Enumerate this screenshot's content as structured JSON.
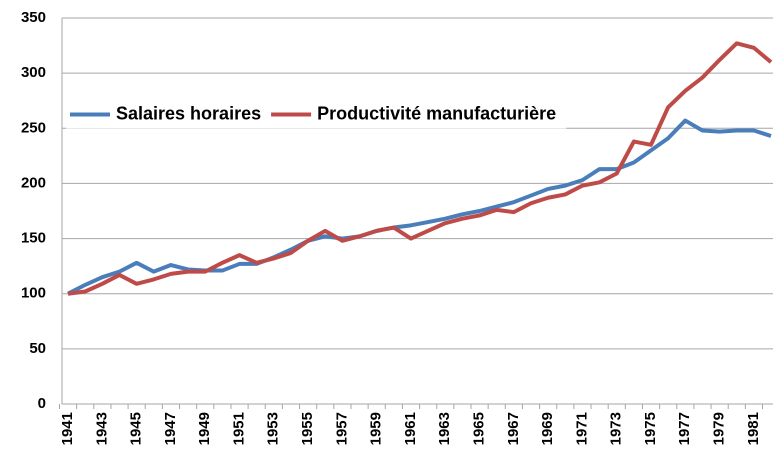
{
  "chart_data": {
    "type": "line",
    "categories": [
      "1941",
      null,
      "1943",
      null,
      "1945",
      null,
      "1947",
      null,
      "1949",
      null,
      "1951",
      null,
      "1953",
      null,
      "1955",
      null,
      "1957",
      null,
      "1959",
      null,
      "1961",
      null,
      "1963",
      null,
      "1965",
      null,
      "1967",
      null,
      "1969",
      null,
      "1971",
      null,
      "1973",
      null,
      "1975",
      null,
      "1977",
      null,
      "1979",
      null,
      "1981",
      null
    ],
    "series": [
      {
        "name": "Salaires horaires",
        "color": "#4a7ebb",
        "values": [
          100,
          108,
          115,
          120,
          128,
          120,
          126,
          122,
          121,
          121,
          127,
          127,
          133,
          140,
          148,
          152,
          150,
          152,
          157,
          160,
          162,
          165,
          168,
          172,
          175,
          179,
          183,
          189,
          195,
          198,
          203,
          213,
          213,
          219,
          230,
          241,
          257,
          248,
          247,
          248,
          248,
          243
        ]
      },
      {
        "name": "Productivité manufacturière",
        "color": "#be4b48",
        "values": [
          100,
          102,
          109,
          117,
          109,
          113,
          118,
          120,
          120,
          128,
          135,
          128,
          132,
          137,
          148,
          157,
          148,
          152,
          157,
          160,
          150,
          157,
          164,
          168,
          171,
          176,
          174,
          182,
          187,
          190,
          198,
          201,
          209,
          238,
          235,
          269,
          284,
          296,
          312,
          327,
          323,
          310
        ]
      }
    ],
    "ylim": [
      0,
      350
    ],
    "yticks": [
      0,
      50,
      100,
      150,
      200,
      250,
      300,
      350
    ],
    "grid": true,
    "legend": "upper left"
  }
}
